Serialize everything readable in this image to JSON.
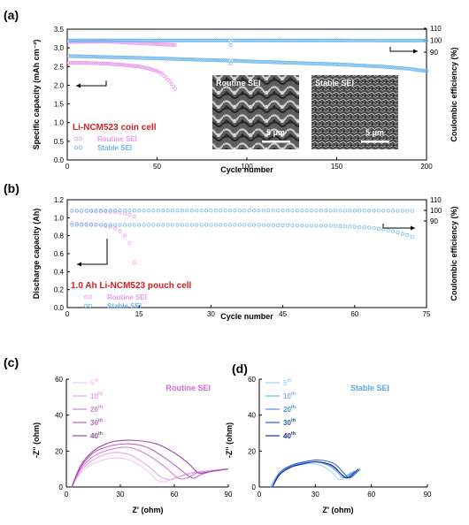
{
  "colors": {
    "routine": "#ea9aea",
    "stable": "#6fb6ea",
    "red_text": "#d42020",
    "d_5": "#a9d2f4",
    "d_10": "#7bb6ec",
    "d_20": "#4f90e4",
    "d_30": "#2c61cc",
    "d_40": "#1a2ea4",
    "c_5": "#f2c6f2",
    "c_10": "#e7a5e7",
    "c_20": "#d683d8",
    "c_30": "#c062c8",
    "c_40": "#a14aa7"
  },
  "chart_data": [
    {
      "panel": "(a)",
      "type": "scatter",
      "title": "Li-NCM523 coin cell",
      "xlabel": "Cycle number",
      "ylabel": "Specific capacity (mAh cm⁻²)",
      "ylabel2": "Coulombic efficiency (%)",
      "xlim": [
        0,
        200
      ],
      "ylim": [
        0,
        3.5
      ],
      "y2lim": [
        0,
        110
      ],
      "xticks": [
        0,
        50,
        100,
        150,
        200
      ],
      "yticks": [
        0.0,
        0.5,
        1.0,
        1.5,
        2.0,
        2.5,
        3.0,
        3.5
      ],
      "y2ticks": [
        90,
        100,
        110
      ],
      "legend": [
        "Routine SEI",
        "Stable SEI"
      ],
      "legend_position": "bottom-left",
      "insets": [
        {
          "label": "Routine SEI",
          "scale": "5 μm"
        },
        {
          "label": "Stable SEI",
          "scale": "5 μm"
        }
      ],
      "series": [
        {
          "name": "Routine SEI",
          "quantity": "capacity",
          "axis": "left",
          "x": [
            1,
            10,
            20,
            30,
            40,
            45,
            50,
            53,
            55,
            57,
            58,
            59,
            60
          ],
          "y": [
            2.6,
            2.6,
            2.58,
            2.55,
            2.5,
            2.45,
            2.38,
            2.3,
            2.2,
            2.1,
            2.03,
            1.97,
            1.9
          ]
        },
        {
          "name": "Routine SEI",
          "quantity": "coulombic_efficiency",
          "axis": "right",
          "x": [
            1,
            20,
            40,
            60
          ],
          "y": [
            98.5,
            99.0,
            97.5,
            96.0
          ]
        },
        {
          "name": "Stable SEI",
          "quantity": "capacity",
          "axis": "left",
          "x": [
            1,
            25,
            50,
            75,
            90,
            91,
            92,
            100,
            125,
            150,
            175,
            190,
            200
          ],
          "y": [
            2.78,
            2.75,
            2.72,
            2.68,
            2.66,
            2.58,
            2.66,
            2.64,
            2.6,
            2.56,
            2.5,
            2.44,
            2.38
          ]
        },
        {
          "name": "Stable SEI",
          "quantity": "coulombic_efficiency",
          "axis": "right",
          "x": [
            1,
            50,
            90,
            91,
            92,
            100,
            150,
            200
          ],
          "y": [
            99.8,
            99.8,
            99.8,
            96.0,
            99.8,
            99.8,
            99.8,
            99.7
          ]
        }
      ]
    },
    {
      "panel": "(b)",
      "type": "scatter",
      "title": "1.0 Ah Li-NCM523 pouch cell",
      "xlabel": "Cycle number",
      "ylabel": "Discharge capacity (Ah)",
      "ylabel2": "Coulombic efficiency (%)",
      "xlim": [
        0,
        75
      ],
      "ylim": [
        0.0,
        1.2
      ],
      "y2lim": [
        0,
        110
      ],
      "xticks": [
        0,
        15,
        30,
        45,
        60,
        75
      ],
      "yticks": [
        0.0,
        0.2,
        0.4,
        0.6,
        0.8,
        1.0,
        1.2
      ],
      "y2ticks": [
        90,
        100,
        110
      ],
      "legend": [
        "Routine SEI",
        "Stable SEI"
      ],
      "legend_position": "bottom-left",
      "series": [
        {
          "name": "Routine SEI",
          "quantity": "capacity",
          "axis": "left",
          "x": [
            1,
            3,
            5,
            7,
            9,
            10,
            11,
            12,
            13,
            14
          ],
          "y": [
            0.94,
            0.93,
            0.93,
            0.92,
            0.9,
            0.88,
            0.85,
            0.8,
            0.72,
            0.5
          ]
        },
        {
          "name": "Routine SEI",
          "quantity": "coulombic_efficiency",
          "axis": "right",
          "x": [
            1,
            5,
            10,
            12,
            13,
            14
          ],
          "y": [
            99.5,
            99.3,
            98.5,
            97.0,
            96.0,
            94.0
          ]
        },
        {
          "name": "Stable SEI",
          "quantity": "capacity",
          "axis": "left",
          "x": [
            1,
            10,
            20,
            30,
            40,
            50,
            55,
            60,
            63,
            66,
            68,
            70,
            72
          ],
          "y": [
            0.92,
            0.92,
            0.92,
            0.92,
            0.92,
            0.91,
            0.91,
            0.9,
            0.89,
            0.87,
            0.85,
            0.82,
            0.79
          ]
        },
        {
          "name": "Stable SEI",
          "quantity": "coulombic_efficiency",
          "axis": "right",
          "x": [
            1,
            10,
            20,
            30,
            40,
            50,
            60,
            70,
            72
          ],
          "y": [
            99.7,
            99.8,
            99.8,
            99.8,
            99.8,
            99.8,
            99.7,
            99.6,
            99.5
          ]
        }
      ]
    },
    {
      "panel": "(c)",
      "type": "line",
      "title": "Routine SEI",
      "xlabel": "Z' (ohm)",
      "ylabel": "-Z'' (ohm)",
      "xlim": [
        0,
        90
      ],
      "ylim": [
        0,
        60
      ],
      "xticks": [
        0,
        30,
        60,
        90
      ],
      "yticks": [
        0,
        20,
        40,
        60
      ],
      "legend_position": "top-left",
      "series": [
        {
          "name": "5",
          "x": [
            3,
            8,
            15,
            25,
            35,
            45,
            50,
            55,
            60,
            68,
            78,
            88
          ],
          "y": [
            0,
            8,
            13,
            16,
            15,
            9,
            4,
            3,
            5,
            7,
            9,
            10
          ]
        },
        {
          "name": "10",
          "x": [
            3,
            8,
            15,
            25,
            35,
            45,
            52,
            58,
            63,
            70,
            80,
            89
          ],
          "y": [
            0,
            9,
            15,
            19,
            18,
            12,
            6,
            4,
            6,
            8,
            9,
            10
          ]
        },
        {
          "name": "20",
          "x": [
            3,
            8,
            15,
            25,
            35,
            45,
            55,
            62,
            67,
            73,
            81,
            89
          ],
          "y": [
            0,
            10,
            17,
            21,
            22,
            18,
            11,
            5,
            5,
            8,
            9,
            10
          ]
        },
        {
          "name": "30",
          "x": [
            3,
            8,
            15,
            25,
            35,
            45,
            55,
            63,
            70,
            75,
            82,
            90
          ],
          "y": [
            0,
            11,
            19,
            23,
            24,
            22,
            16,
            10,
            5,
            7,
            9,
            10
          ]
        },
        {
          "name": "40",
          "x": [
            3,
            8,
            15,
            25,
            37,
            50,
            60,
            68,
            73,
            77,
            83,
            90
          ],
          "y": [
            0,
            12,
            20,
            25,
            26,
            24,
            19,
            13,
            8,
            8,
            9,
            10
          ]
        }
      ]
    },
    {
      "panel": "(d)",
      "type": "line",
      "title": "Stable SEI",
      "xlabel": "Z' (ohm)",
      "ylabel": "-Z'' (ohm)",
      "xlim": [
        0,
        90
      ],
      "ylim": [
        0,
        60
      ],
      "xticks": [
        0,
        30,
        60,
        90
      ],
      "yticks": [
        0,
        20,
        40,
        60
      ],
      "legend_position": "top-left",
      "series": [
        {
          "name": "5",
          "x": [
            6,
            10,
            15,
            20,
            28,
            35,
            40,
            43,
            46,
            49
          ],
          "y": [
            0,
            6,
            10,
            12,
            13,
            11,
            7,
            4,
            6,
            8
          ]
        },
        {
          "name": "10",
          "x": [
            6,
            10,
            15,
            22,
            30,
            37,
            42,
            45,
            48,
            51
          ],
          "y": [
            0,
            7,
            11,
            13,
            14,
            12,
            8,
            5,
            7,
            9
          ]
        },
        {
          "name": "20",
          "x": [
            7,
            11,
            16,
            23,
            30,
            38,
            43,
            46,
            49,
            52
          ],
          "y": [
            0,
            7,
            11,
            13,
            14,
            12,
            8,
            5,
            7,
            9
          ]
        },
        {
          "name": "30",
          "x": [
            7,
            11,
            17,
            24,
            32,
            40,
            45,
            48,
            51,
            54
          ],
          "y": [
            0,
            8,
            12,
            14,
            15,
            13,
            8,
            5,
            7,
            10
          ]
        },
        {
          "name": "40",
          "x": [
            7,
            11,
            17,
            24,
            31,
            39,
            44,
            47,
            50,
            53
          ],
          "y": [
            0,
            7,
            11,
            13,
            14,
            12,
            7,
            5,
            7,
            10
          ]
        }
      ]
    }
  ]
}
